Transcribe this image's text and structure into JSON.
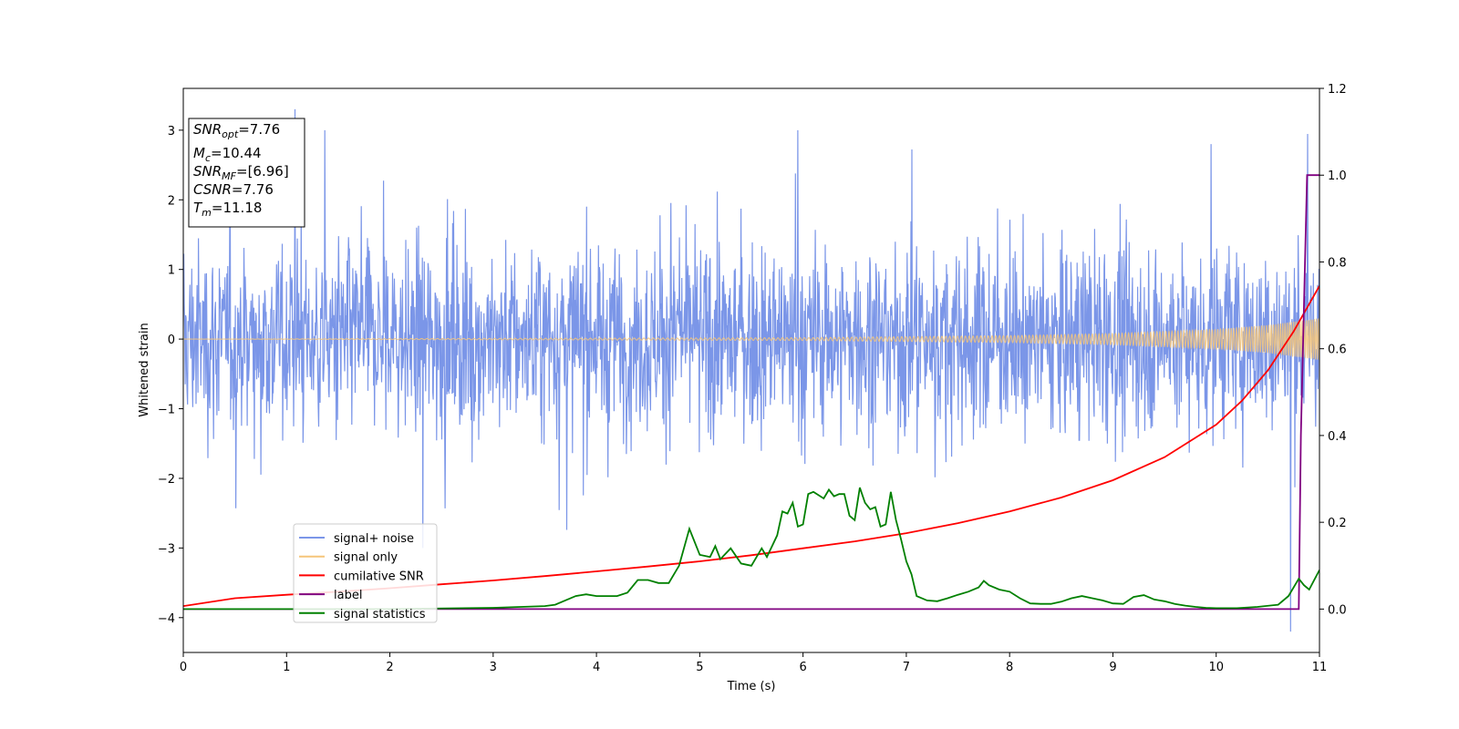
{
  "chart_data": {
    "type": "line",
    "xlabel": "Time (s)",
    "ylabel": "Whitened strain",
    "xlim": [
      0,
      11
    ],
    "ylim_left": [
      -4.5,
      3.6
    ],
    "ylim_right": [
      -0.1,
      1.2
    ],
    "x_ticks": [
      "0",
      "1",
      "2",
      "3",
      "4",
      "5",
      "6",
      "7",
      "8",
      "9",
      "10",
      "11"
    ],
    "y_left_ticks": [
      "−4",
      "−3",
      "−2",
      "−1",
      "0",
      "1",
      "2",
      "3"
    ],
    "y_right_ticks": [
      "0.0",
      "0.2",
      "0.4",
      "0.6",
      "0.8",
      "1.0",
      "1.2"
    ],
    "grid": false,
    "legend_placement": "lower-left",
    "annotation_lines": [
      {
        "base": "SNR",
        "sub": "opt",
        "value": "=7.76"
      },
      {
        "base": "M",
        "sub": "c",
        "value": "=10.44"
      },
      {
        "base": "SNR",
        "sub": "MF",
        "value": "=[6.96]"
      },
      {
        "base": "CSNR",
        "sub": "",
        "value": "=7.76"
      },
      {
        "base": "T",
        "sub": "m",
        "value": "=11.18"
      }
    ],
    "series": [
      {
        "name": "signal+ noise",
        "color": "#7b96e8",
        "axis": "left",
        "kind": "noise",
        "approx_range": [
          -4.2,
          3.3
        ],
        "notable_spikes": [
          [
            1.08,
            3.3
          ],
          [
            1.37,
            3.0
          ],
          [
            5.95,
            3.0
          ],
          [
            9.95,
            2.8
          ],
          [
            10.72,
            -4.2
          ],
          [
            2.32,
            -3.0
          ]
        ]
      },
      {
        "name": "signal only",
        "color": "#f5c57a",
        "axis": "left",
        "kind": "chirp",
        "envelope": [
          [
            0,
            0.0
          ],
          [
            6,
            0.02
          ],
          [
            8,
            0.05
          ],
          [
            9,
            0.08
          ],
          [
            10,
            0.14
          ],
          [
            10.5,
            0.2
          ],
          [
            11,
            0.3
          ]
        ]
      },
      {
        "name": "cumilative SNR",
        "color": "#ff0000",
        "axis": "right",
        "x": [
          0,
          0.5,
          1,
          1.5,
          2,
          2.5,
          3,
          3.5,
          4,
          4.5,
          5,
          5.5,
          6,
          6.5,
          7,
          7.5,
          8,
          8.5,
          9,
          9.5,
          10,
          10.25,
          10.5,
          10.75,
          11
        ],
        "y": [
          0.007,
          0.025,
          0.033,
          0.04,
          0.048,
          0.057,
          0.066,
          0.076,
          0.087,
          0.098,
          0.11,
          0.124,
          0.14,
          0.156,
          0.175,
          0.198,
          0.225,
          0.257,
          0.297,
          0.35,
          0.425,
          0.48,
          0.55,
          0.64,
          0.745
        ]
      },
      {
        "name": "label",
        "color": "#800080",
        "axis": "right",
        "x": [
          0,
          10.8,
          10.82,
          10.88,
          11
        ],
        "y": [
          0.0,
          0.0,
          0.4,
          1.0,
          1.0
        ]
      },
      {
        "name": "signal statistics",
        "color": "#008000",
        "axis": "right",
        "x": [
          0,
          2,
          3,
          3.5,
          3.6,
          3.8,
          3.9,
          4.0,
          4.1,
          4.2,
          4.3,
          4.4,
          4.5,
          4.6,
          4.7,
          4.8,
          4.9,
          5.0,
          5.1,
          5.15,
          5.2,
          5.3,
          5.4,
          5.5,
          5.6,
          5.65,
          5.7,
          5.75,
          5.8,
          5.85,
          5.9,
          5.95,
          6.0,
          6.05,
          6.1,
          6.2,
          6.25,
          6.3,
          6.35,
          6.4,
          6.45,
          6.5,
          6.55,
          6.6,
          6.65,
          6.7,
          6.75,
          6.8,
          6.85,
          6.9,
          6.95,
          7.0,
          7.05,
          7.1,
          7.2,
          7.3,
          7.4,
          7.5,
          7.6,
          7.7,
          7.75,
          7.8,
          7.9,
          8.0,
          8.1,
          8.2,
          8.3,
          8.4,
          8.5,
          8.6,
          8.7,
          8.8,
          8.9,
          9.0,
          9.1,
          9.2,
          9.3,
          9.4,
          9.5,
          9.6,
          9.7,
          9.8,
          9.9,
          10.0,
          10.2,
          10.4,
          10.6,
          10.7,
          10.8,
          10.85,
          10.9,
          11.0
        ],
        "y": [
          0.0,
          0.0,
          0.003,
          0.007,
          0.01,
          0.03,
          0.034,
          0.03,
          0.03,
          0.03,
          0.038,
          0.067,
          0.067,
          0.06,
          0.06,
          0.1,
          0.185,
          0.125,
          0.12,
          0.145,
          0.115,
          0.14,
          0.105,
          0.1,
          0.14,
          0.12,
          0.145,
          0.17,
          0.225,
          0.22,
          0.245,
          0.19,
          0.195,
          0.265,
          0.27,
          0.255,
          0.275,
          0.26,
          0.265,
          0.265,
          0.215,
          0.205,
          0.28,
          0.245,
          0.23,
          0.235,
          0.19,
          0.195,
          0.27,
          0.205,
          0.16,
          0.11,
          0.08,
          0.03,
          0.02,
          0.018,
          0.025,
          0.033,
          0.04,
          0.05,
          0.065,
          0.055,
          0.045,
          0.04,
          0.025,
          0.013,
          0.012,
          0.012,
          0.017,
          0.025,
          0.03,
          0.025,
          0.02,
          0.013,
          0.012,
          0.028,
          0.032,
          0.022,
          0.018,
          0.012,
          0.008,
          0.005,
          0.003,
          0.002,
          0.002,
          0.005,
          0.01,
          0.03,
          0.07,
          0.055,
          0.045,
          0.09
        ]
      }
    ]
  }
}
